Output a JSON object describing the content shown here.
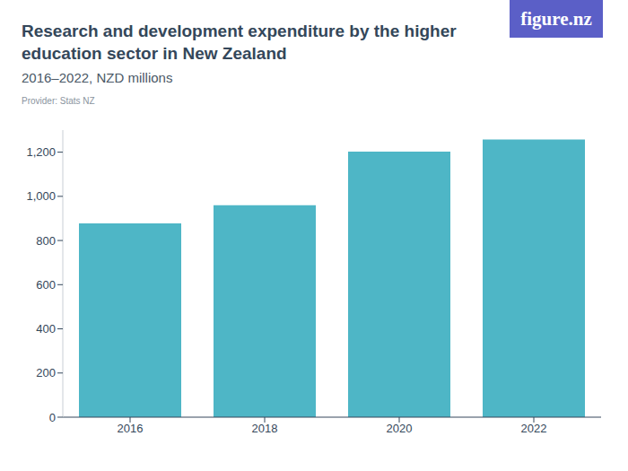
{
  "chart_data": {
    "type": "bar",
    "title": "Research and development expenditure by the higher education sector in New Zealand",
    "subtitle": "2016–2022, NZD millions",
    "source": "Provider: Stats NZ",
    "logo": "figure.nz",
    "categories": [
      "2016",
      "2018",
      "2020",
      "2022"
    ],
    "values": [
      878,
      960,
      1203,
      1257
    ],
    "color": "#4eb6c6",
    "ylim": [
      0,
      1300
    ],
    "yticks": [
      0,
      200,
      400,
      600,
      800,
      {
        "value": 1000,
        "label": "1,000"
      },
      {
        "value": 1200,
        "label": "1,200"
      }
    ],
    "grid": false,
    "data_labels": false
  }
}
